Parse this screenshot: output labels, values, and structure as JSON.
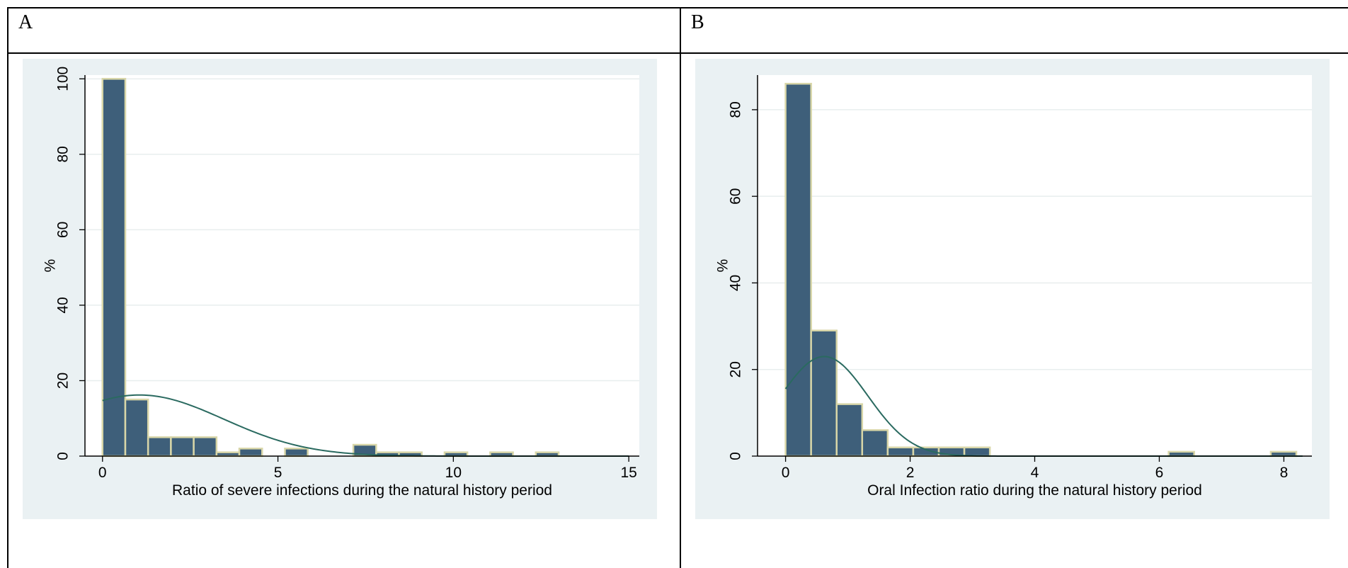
{
  "panels": [
    {
      "letter": "A"
    },
    {
      "letter": "B"
    }
  ],
  "colors": {
    "bar_fill": "#3e5f7a",
    "bar_stroke": "#d8d6a8",
    "curve": "#2a6a60",
    "plot_bg": "#ffffff",
    "outer_bg": "#eaf1f3"
  },
  "chart_data": [
    {
      "type": "bar",
      "panel": "A",
      "xlabel": "Ratio of severe infections during the natural history period",
      "ylabel": "%",
      "xlim": [
        -0.5,
        15.3
      ],
      "ylim": [
        0,
        101
      ],
      "xticks": [
        0,
        5,
        10,
        15
      ],
      "yticks": [
        0,
        20,
        40,
        60,
        80,
        100
      ],
      "bin_width": 0.65,
      "bins": [
        {
          "x0": 0.0,
          "value": 100
        },
        {
          "x0": 0.65,
          "value": 15
        },
        {
          "x0": 1.3,
          "value": 5
        },
        {
          "x0": 1.95,
          "value": 5
        },
        {
          "x0": 2.6,
          "value": 5
        },
        {
          "x0": 3.25,
          "value": 1
        },
        {
          "x0": 3.9,
          "value": 2
        },
        {
          "x0": 5.2,
          "value": 2
        },
        {
          "x0": 7.15,
          "value": 3
        },
        {
          "x0": 7.8,
          "value": 1
        },
        {
          "x0": 8.45,
          "value": 1
        },
        {
          "x0": 9.75,
          "value": 1
        },
        {
          "x0": 11.05,
          "value": 1
        },
        {
          "x0": 12.35,
          "value": 1
        }
      ],
      "normal_curve": {
        "mean": 1.05,
        "sd": 2.4,
        "peak": 16.2,
        "x_range": [
          0,
          15
        ]
      }
    },
    {
      "type": "bar",
      "panel": "B",
      "xlabel": "Oral Infection ratio during the natural history period",
      "ylabel": "%",
      "xlim": [
        -0.45,
        8.45
      ],
      "ylim": [
        0,
        88
      ],
      "xticks": [
        0,
        2,
        4,
        6,
        8
      ],
      "yticks": [
        0,
        20,
        40,
        60,
        80
      ],
      "bin_width": 0.41,
      "bins": [
        {
          "x0": 0.0,
          "value": 86
        },
        {
          "x0": 0.41,
          "value": 29
        },
        {
          "x0": 0.82,
          "value": 12
        },
        {
          "x0": 1.23,
          "value": 6
        },
        {
          "x0": 1.64,
          "value": 2
        },
        {
          "x0": 2.05,
          "value": 2
        },
        {
          "x0": 2.46,
          "value": 2
        },
        {
          "x0": 2.87,
          "value": 2
        },
        {
          "x0": 6.15,
          "value": 1
        },
        {
          "x0": 7.79,
          "value": 1
        }
      ],
      "normal_curve": {
        "mean": 0.62,
        "sd": 0.7,
        "peak": 23,
        "x_range": [
          0,
          8.3
        ]
      }
    }
  ]
}
